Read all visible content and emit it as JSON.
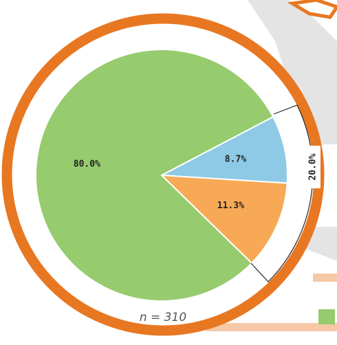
{
  "chart_data": {
    "type": "pie",
    "values": [
      8.7,
      11.3,
      80.0
    ],
    "value_labels": [
      "8.7%",
      "11.3%",
      "80.0%"
    ],
    "colors": [
      "#8ecae6",
      "#f7a955",
      "#96cb6e"
    ],
    "annotations": [
      "20.0%"
    ],
    "note": "n = 310"
  }
}
